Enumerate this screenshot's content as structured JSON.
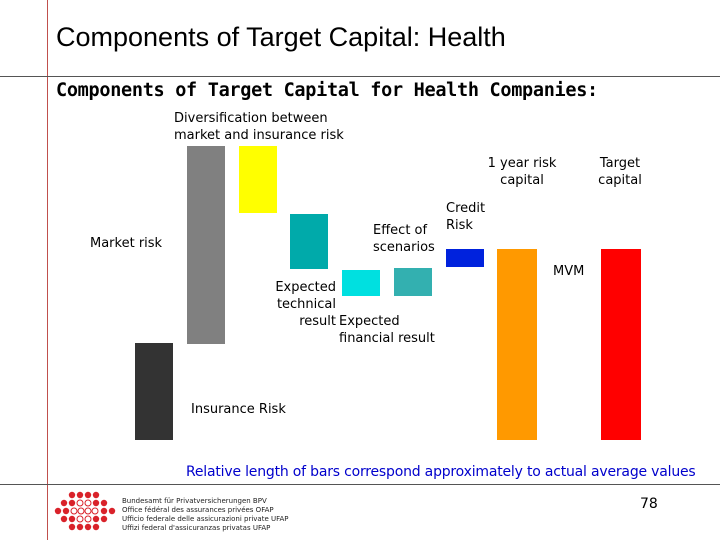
{
  "slide": {
    "title": "Components of Target Capital: Health",
    "subtitle": "Components of Target Capital for Health Companies:"
  },
  "diagram": {
    "labels": {
      "diversification": [
        "Diversification between",
        "market and insurance risk"
      ],
      "one_year_risk_capital": [
        "1 year risk",
        "capital"
      ],
      "target_capital": [
        "Target",
        "capital"
      ],
      "credit_risk": [
        "Credit",
        "Risk"
      ],
      "effect_of_scenarios": [
        "Effect of",
        "scenarios"
      ],
      "market_risk": "Market risk",
      "mvm": "MVM",
      "expected_technical_result": [
        "Expected",
        "technical",
        "result"
      ],
      "expected_financial_result": [
        "Expected",
        "financial result"
      ],
      "insurance_risk": "Insurance Risk"
    },
    "colors": {
      "insurance_risk": "#333333",
      "market_risk": "#808080",
      "diversification": "#ffff00",
      "effect_of_scenarios": "#00aaaa",
      "expected_technical_result": "#00e0e0",
      "expected_financial_result": "#33b0b0",
      "credit_risk": "#0022dd",
      "one_year_risk_capital": "#ff9900",
      "target_capital": "#ff0000"
    }
  },
  "footnote": "Relative length of bars correspond approximately to actual average values",
  "page_number": "78",
  "footer": {
    "org_lines": [
      "Bundesamt für Privatversicherungen BPV",
      "Office fédéral des assurances privées OFAP",
      "Ufficio federale delle assicurazioni private UFAP",
      "Uffizi federal d'assicuranzas privatas UFAP"
    ]
  }
}
